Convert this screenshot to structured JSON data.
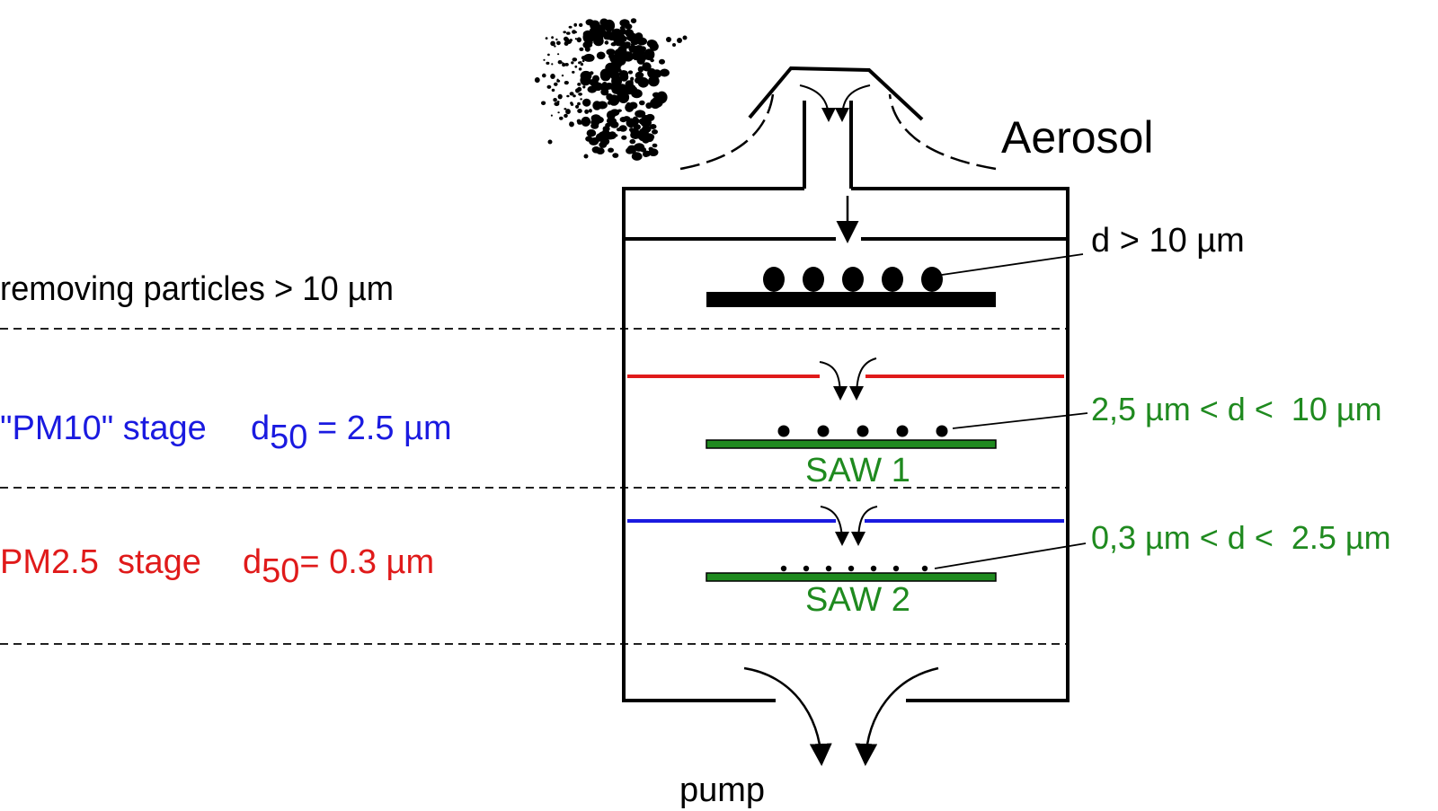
{
  "labels": {
    "aerosol": "Aerosol",
    "pump": "pump",
    "stage1": {
      "description": "removing particles > 10 µm",
      "capture": "d > 10 µm"
    },
    "stage2": {
      "name": "\"PM10\" stage",
      "d50_symbol": "d",
      "d50_subscript": "50",
      "d50_value": " = 2.5 µm",
      "capture": "2,5 µm < d <  10 µm",
      "sensor": "SAW 1"
    },
    "stage3": {
      "name": "PM2.5  stage",
      "d50_symbol": "d",
      "d50_subscript": "50",
      "d50_value": "= 0.3 µm",
      "capture": "0,3 µm < d <  2.5 µm",
      "sensor": "SAW 2"
    }
  },
  "colors": {
    "outline": "#000000",
    "pm10_text": "#1a1ae0",
    "pm25_text": "#e01a1a",
    "saw_green": "#1f8a1f",
    "plate_red": "#e01a1a",
    "plate_blue": "#1a1ae0"
  },
  "icons": {
    "aerosol_cloud": "particle-cloud-icon"
  }
}
